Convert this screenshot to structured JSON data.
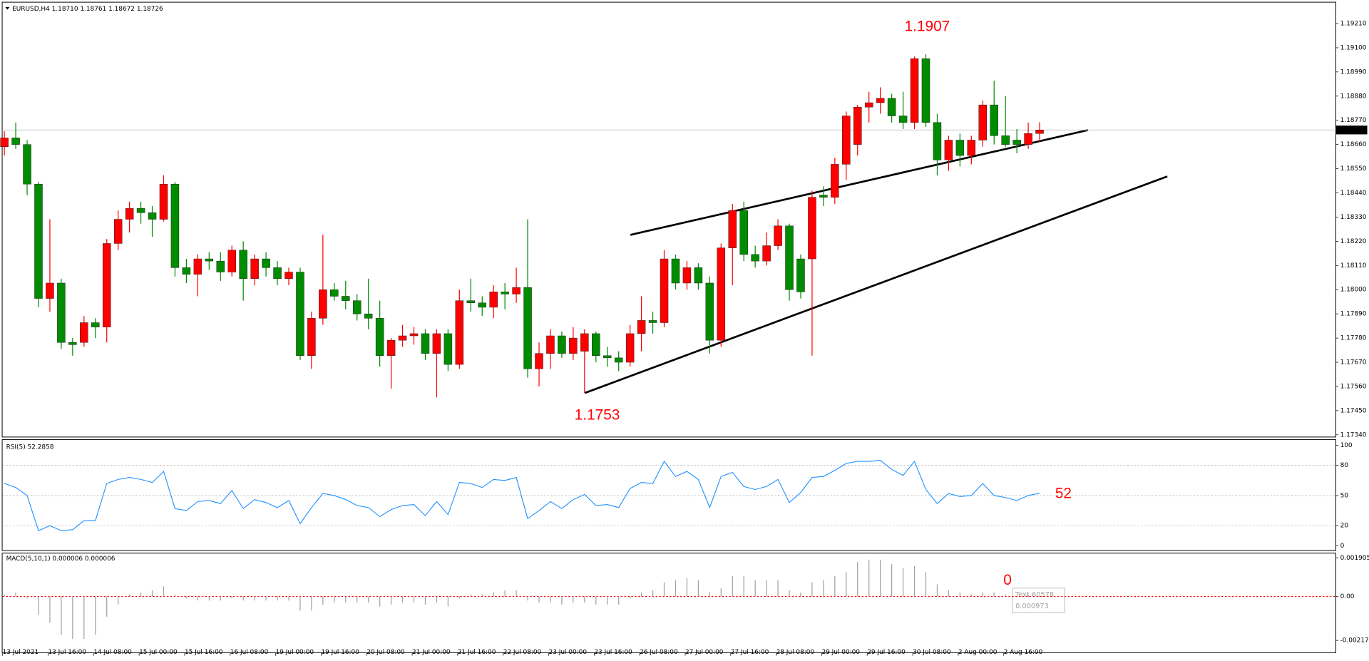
{
  "chart_data": [
    {
      "type": "candlestick",
      "title": "EURUSD,H4  1.18710 1.18761 1.18672 1.18726",
      "up_color": "#ff0000",
      "down_color": "#008c00",
      "categories": [
        "13 Jul 2021",
        null,
        null,
        null,
        "13 Jul 16:00",
        null,
        null,
        null,
        "14 Jul 08:00",
        null,
        null,
        null,
        "15 Jul 00:00",
        null,
        null,
        null,
        "15 Jul 16:00",
        null,
        null,
        null,
        "16 Jul 08:00",
        null,
        null,
        null,
        "19 Jul 00:00",
        null,
        null,
        null,
        "19 Jul 16:00",
        null,
        null,
        null,
        "20 Jul 08:00",
        null,
        null,
        null,
        "21 Jul 00:00",
        null,
        null,
        null,
        "21 Jul 16:00",
        null,
        null,
        null,
        "22 Jul 08:00",
        null,
        null,
        null,
        "23 Jul 00:00",
        null,
        null,
        null,
        "23 Jul 16:00",
        null,
        null,
        null,
        "26 Jul 08:00",
        null,
        null,
        null,
        "27 Jul 00:00",
        null,
        null,
        null,
        "27 Jul 16:00",
        null,
        null,
        null,
        "28 Jul 08:00",
        null,
        null,
        null,
        "29 Jul 00:00",
        null,
        null,
        null,
        "29 Jul 16:00",
        null,
        null,
        null,
        "30 Jul 08:00",
        null,
        null,
        null,
        "2 Aug 00:00",
        null,
        null,
        null,
        "2 Aug 16:00",
        null,
        null,
        null
      ],
      "candles": [
        [
          1.1865,
          1.1872,
          1.1861,
          1.1869
        ],
        [
          1.1869,
          1.1876,
          1.1864,
          1.1866
        ],
        [
          1.1866,
          1.1868,
          1.1843,
          1.1848
        ],
        [
          1.1848,
          1.1849,
          1.1792,
          1.1796
        ],
        [
          1.1796,
          1.1832,
          1.179,
          1.1803
        ],
        [
          1.1803,
          1.1805,
          1.1773,
          1.1776
        ],
        [
          1.1776,
          1.1778,
          1.177,
          1.1775
        ],
        [
          1.1776,
          1.1788,
          1.1774,
          1.1785
        ],
        [
          1.1785,
          1.1787,
          1.1778,
          1.1783
        ],
        [
          1.1783,
          1.1823,
          1.1776,
          1.1821
        ],
        [
          1.1821,
          1.1836,
          1.1818,
          1.1832
        ],
        [
          1.1832,
          1.184,
          1.1826,
          1.1837
        ],
        [
          1.1837,
          1.184,
          1.183,
          1.1835
        ],
        [
          1.1835,
          1.1838,
          1.1824,
          1.1832
        ],
        [
          1.1832,
          1.1852,
          1.1831,
          1.1848
        ],
        [
          1.1848,
          1.1849,
          1.1806,
          1.181
        ],
        [
          1.181,
          1.1814,
          1.1803,
          1.1807
        ],
        [
          1.1807,
          1.1816,
          1.1797,
          1.1814
        ],
        [
          1.1814,
          1.1817,
          1.1809,
          1.1813
        ],
        [
          1.1813,
          1.1817,
          1.1804,
          1.1808
        ],
        [
          1.1808,
          1.182,
          1.1806,
          1.1818
        ],
        [
          1.1818,
          1.1822,
          1.1795,
          1.1805
        ],
        [
          1.1805,
          1.1816,
          1.1802,
          1.1814
        ],
        [
          1.1814,
          1.1817,
          1.1806,
          1.181
        ],
        [
          1.181,
          1.1813,
          1.1802,
          1.1805
        ],
        [
          1.1805,
          1.181,
          1.1802,
          1.1808
        ],
        [
          1.1808,
          1.181,
          1.1768,
          1.177
        ],
        [
          1.177,
          1.179,
          1.1764,
          1.1787
        ],
        [
          1.1787,
          1.1825,
          1.1784,
          1.18
        ],
        [
          1.18,
          1.1803,
          1.1795,
          1.1797
        ],
        [
          1.1797,
          1.1804,
          1.1791,
          1.1795
        ],
        [
          1.1795,
          1.1798,
          1.1786,
          1.1789
        ],
        [
          1.1789,
          1.1805,
          1.1782,
          1.1787
        ],
        [
          1.1787,
          1.1795,
          1.1765,
          1.177
        ],
        [
          1.177,
          1.1778,
          1.1755,
          1.1777
        ],
        [
          1.1777,
          1.1784,
          1.1774,
          1.1779
        ],
        [
          1.1779,
          1.1783,
          1.1775,
          1.178
        ],
        [
          1.178,
          1.1782,
          1.1768,
          1.1771
        ],
        [
          1.1771,
          1.1782,
          1.1751,
          1.178
        ],
        [
          1.178,
          1.1782,
          1.1763,
          1.1766
        ],
        [
          1.1766,
          1.18,
          1.1764,
          1.1795
        ],
        [
          1.1795,
          1.1805,
          1.179,
          1.1794
        ],
        [
          1.1794,
          1.1797,
          1.1788,
          1.1792
        ],
        [
          1.1792,
          1.1802,
          1.1787,
          1.1799
        ],
        [
          1.1799,
          1.1803,
          1.1791,
          1.1798
        ],
        [
          1.1798,
          1.181,
          1.1794,
          1.1801
        ],
        [
          1.1801,
          1.1832,
          1.176,
          1.1764
        ],
        [
          1.1764,
          1.1776,
          1.1756,
          1.1771
        ],
        [
          1.1771,
          1.1782,
          1.1764,
          1.1779
        ],
        [
          1.1779,
          1.1781,
          1.1769,
          1.1771
        ],
        [
          1.1771,
          1.1783,
          1.1768,
          1.1778
        ],
        [
          1.1772,
          1.1782,
          1.1753,
          1.178
        ],
        [
          1.178,
          1.1781,
          1.1767,
          1.177
        ],
        [
          1.177,
          1.1774,
          1.1765,
          1.1769
        ],
        [
          1.1769,
          1.1772,
          1.1763,
          1.1767
        ],
        [
          1.1767,
          1.1784,
          1.1765,
          1.178
        ],
        [
          1.178,
          1.1797,
          1.1772,
          1.1786
        ],
        [
          1.1786,
          1.179,
          1.178,
          1.1785
        ],
        [
          1.1785,
          1.1818,
          1.1783,
          1.1814
        ],
        [
          1.1814,
          1.1816,
          1.18,
          1.1803
        ],
        [
          1.1803,
          1.1813,
          1.18,
          1.181
        ],
        [
          1.181,
          1.1812,
          1.18,
          1.1803
        ],
        [
          1.1803,
          1.1806,
          1.1771,
          1.1777
        ],
        [
          1.1777,
          1.1821,
          1.1774,
          1.1819
        ],
        [
          1.1819,
          1.1839,
          1.1802,
          1.1836
        ],
        [
          1.1836,
          1.184,
          1.1813,
          1.1816
        ],
        [
          1.1816,
          1.182,
          1.181,
          1.1813
        ],
        [
          1.1813,
          1.1826,
          1.1811,
          1.182
        ],
        [
          1.182,
          1.1832,
          1.1818,
          1.1829
        ],
        [
          1.1829,
          1.183,
          1.1795,
          1.18
        ],
        [
          1.1814,
          1.1816,
          1.1796,
          1.1799
        ],
        [
          1.1814,
          1.1845,
          1.177,
          1.1842
        ],
        [
          1.1843,
          1.1847,
          1.1838,
          1.1842
        ],
        [
          1.1842,
          1.186,
          1.1839,
          1.1857
        ],
        [
          1.1857,
          1.1881,
          1.185,
          1.1879
        ],
        [
          1.1866,
          1.1884,
          1.1861,
          1.1883
        ],
        [
          1.1883,
          1.189,
          1.1876,
          1.1885
        ],
        [
          1.1885,
          1.1892,
          1.188,
          1.1887
        ],
        [
          1.1887,
          1.1889,
          1.1876,
          1.1879
        ],
        [
          1.1879,
          1.189,
          1.1873,
          1.1876
        ],
        [
          1.1876,
          1.1906,
          1.1873,
          1.1905
        ],
        [
          1.1905,
          1.1907,
          1.1874,
          1.1876
        ],
        [
          1.1876,
          1.188,
          1.1852,
          1.1859
        ],
        [
          1.1859,
          1.187,
          1.1854,
          1.1868
        ],
        [
          1.1868,
          1.1871,
          1.1856,
          1.1861
        ],
        [
          1.1861,
          1.187,
          1.1857,
          1.1868
        ],
        [
          1.1868,
          1.1886,
          1.1865,
          1.1884
        ],
        [
          1.1884,
          1.1895,
          1.1866,
          1.187
        ],
        [
          1.187,
          1.1888,
          1.1865,
          1.1866
        ],
        [
          1.1868,
          1.1873,
          1.1862,
          1.1866
        ],
        [
          1.1866,
          1.1876,
          1.1864,
          1.1871
        ],
        [
          1.1871,
          1.18761,
          1.18672,
          1.18726
        ]
      ],
      "ylim": [
        1.17332,
        1.19305
      ],
      "yticks": [
        {
          "value": 1.1921,
          "label": "1.19210"
        },
        {
          "value": 1.191,
          "label": "1.19100"
        },
        {
          "value": 1.1899,
          "label": "1.18990"
        },
        {
          "value": 1.1888,
          "label": "1.18880"
        },
        {
          "value": 1.1877,
          "label": "1.18770"
        },
        {
          "value": 1.1866,
          "label": "1.18660"
        },
        {
          "value": 1.1855,
          "label": "1.18550"
        },
        {
          "value": 1.1844,
          "label": "1.18440"
        },
        {
          "value": 1.1833,
          "label": "1.18330"
        },
        {
          "value": 1.1822,
          "label": "1.18220"
        },
        {
          "value": 1.1811,
          "label": "1.18110"
        },
        {
          "value": 1.18,
          "label": "1.18000"
        },
        {
          "value": 1.1789,
          "label": "1.17890"
        },
        {
          "value": 1.1778,
          "label": "1.17780"
        },
        {
          "value": 1.1767,
          "label": "1.17670"
        },
        {
          "value": 1.1756,
          "label": "1.17560"
        },
        {
          "value": 1.1745,
          "label": "1.17450"
        },
        {
          "value": 1.1734,
          "label": "1.17340"
        }
      ],
      "current_price": {
        "value": 1.18726,
        "label": "1.18726"
      },
      "annotations": [
        "1.1907",
        "1.1753"
      ]
    },
    {
      "type": "line",
      "title": "RSI(5) 52.2858",
      "color": "#1e90ff",
      "values": [
        62,
        58,
        50,
        15,
        20,
        15,
        16,
        25,
        25,
        62,
        66,
        68,
        66,
        63,
        74,
        37,
        35,
        44,
        45,
        42,
        55,
        37,
        46,
        43,
        38,
        45,
        22,
        38,
        52,
        50,
        46,
        40,
        38,
        29,
        36,
        40,
        41,
        30,
        44,
        31,
        63,
        62,
        58,
        66,
        65,
        68,
        27,
        35,
        44,
        37,
        46,
        51,
        40,
        41,
        38,
        57,
        63,
        62,
        84,
        69,
        74,
        66,
        38,
        69,
        73,
        59,
        56,
        59,
        66,
        43,
        53,
        68,
        69,
        75,
        82,
        84,
        84,
        85,
        76,
        70,
        84,
        56,
        42,
        52,
        49,
        50,
        62,
        50,
        48,
        45,
        50,
        52.2858
      ],
      "ylim": [
        -5.2,
        105.2
      ],
      "yticks": [
        100,
        80,
        50,
        20,
        0
      ],
      "annotations": [
        "52"
      ]
    },
    {
      "type": "bar",
      "title": "MACD(5,10,1) 0.000006 0.000006",
      "color": "#a0a0a0",
      "zero_line_color": "#ff0000",
      "values": [
        0.0001,
        0.0002,
        -0.0001,
        -0.0009,
        -0.0013,
        -0.0019,
        -0.0021,
        -0.0021,
        -0.0019,
        -0.001,
        -0.0004,
        0.0001,
        0.0002,
        0.0003,
        0.0005,
        0.0001,
        -0.0001,
        -0.0002,
        -0.0002,
        -0.0002,
        -0.0001,
        -0.0002,
        -0.0002,
        -0.0002,
        -0.0002,
        -0.0002,
        -0.0007,
        -0.0007,
        -0.0004,
        -0.0003,
        -0.0003,
        -0.0003,
        -0.0003,
        -0.0005,
        -0.0004,
        -0.0003,
        -0.0003,
        -0.0004,
        -0.0003,
        -0.0005,
        -0.0001,
        0.0001,
        0.0001,
        0.0002,
        0.0003,
        0.0003,
        -0.0002,
        -0.0003,
        -0.0003,
        -0.0004,
        -0.0003,
        -0.0003,
        -0.0004,
        -0.0004,
        -0.0004,
        -0.0001,
        0.0002,
        0.0003,
        0.0007,
        0.0008,
        0.0009,
        0.0008,
        0.0002,
        0.0004,
        0.001,
        0.001,
        0.0008,
        0.0008,
        0.0008,
        0.0003,
        0.0002,
        0.0007,
        0.0008,
        0.001,
        0.0012,
        0.0017,
        0.0018,
        0.0018,
        0.0016,
        0.0014,
        0.0015,
        0.0012,
        0.0006,
        0.0003,
        0.0002,
        0.0001,
        0.0002,
        0.0002,
        0.0001,
        0,
        0.0001,
        6e-06
      ],
      "ylim": [
        -0.0028,
        0.00212
      ],
      "yticks": [
        0.001905,
        {
          "value": 0,
          "label": "0.00"
        },
        -0.002173
      ],
      "annotations": [
        "0"
      ],
      "tooltip": [
        "Text 60578",
        "0.000973"
      ]
    }
  ]
}
